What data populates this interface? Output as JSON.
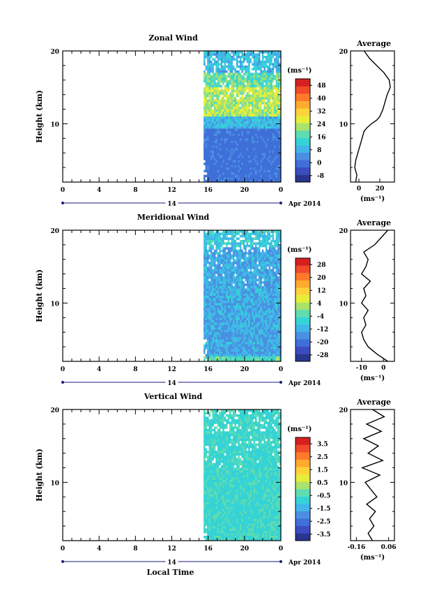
{
  "chart_data": [
    {
      "type": "heatmap",
      "title": "Zonal Wind",
      "ylabel": "Height (km)",
      "xlabel": "",
      "x_ticks": [
        "0",
        "4",
        "8",
        "12",
        "16",
        "20",
        "0"
      ],
      "xlim": [
        0,
        24
      ],
      "y_ticks": [
        "10",
        "20"
      ],
      "ylim": [
        2,
        20
      ],
      "date_day": "14",
      "date_label": "Apr 2014",
      "data_start_hour": 15.5,
      "colorbar": {
        "unit": "(ms⁻¹)",
        "ticks": [
          "-8",
          "0",
          "8",
          "16",
          "24",
          "32",
          "40",
          "48"
        ],
        "range": [
          -12,
          52
        ],
        "colors": [
          "#2a3590",
          "#3b4cc0",
          "#3f6fd8",
          "#4a90e2",
          "#41b6e8",
          "#35d3d6",
          "#5fdcb0",
          "#a9e36c",
          "#e6ee3a",
          "#ffd23a",
          "#ffab2e",
          "#ff7a2a",
          "#f04a2a",
          "#d62020"
        ]
      },
      "profile": {
        "title": "Average",
        "x_ticks": [
          "0",
          "20"
        ],
        "xlim": [
          -8,
          34
        ],
        "unit": "(ms⁻¹)",
        "height_km": [
          2,
          3,
          4,
          5,
          6,
          7,
          8,
          9,
          9.5,
          10,
          10.5,
          11,
          12,
          13,
          14,
          15,
          16,
          17,
          18,
          19,
          20
        ],
        "values": [
          -3,
          -2,
          -4,
          -3,
          -1,
          1,
          3,
          5,
          8,
          12,
          17,
          20,
          23,
          25,
          27,
          30,
          29,
          24,
          17,
          10,
          5
        ]
      }
    },
    {
      "type": "heatmap",
      "title": "Meridional Wind",
      "ylabel": "Height (km)",
      "xlabel": "",
      "x_ticks": [
        "0",
        "4",
        "8",
        "12",
        "16",
        "20",
        "0"
      ],
      "xlim": [
        0,
        24
      ],
      "y_ticks": [
        "10",
        "20"
      ],
      "ylim": [
        2,
        20
      ],
      "date_day": "14",
      "date_label": "Apr 2014",
      "data_start_hour": 15.5,
      "colorbar": {
        "unit": "(ms⁻¹)",
        "ticks": [
          "-28",
          "-20",
          "-12",
          "-4",
          "4",
          "12",
          "20",
          "28"
        ],
        "range": [
          -32,
          32
        ],
        "colors": [
          "#2a3590",
          "#3b4cc0",
          "#3f6fd8",
          "#4a90e2",
          "#41b6e8",
          "#35d3d6",
          "#5fdcb0",
          "#a9e36c",
          "#e6ee3a",
          "#ffd23a",
          "#ffab2e",
          "#ff7a2a",
          "#f04a2a",
          "#d62020"
        ]
      },
      "profile": {
        "title": "Average",
        "x_ticks": [
          "-10",
          "0"
        ],
        "xlim": [
          -15,
          5
        ],
        "unit": "(ms⁻¹)",
        "height_km": [
          2,
          3,
          4,
          5,
          6,
          7,
          8,
          9,
          10,
          11,
          12,
          13,
          14,
          15,
          16,
          17,
          18,
          19,
          20
        ],
        "values": [
          2,
          -3,
          -7,
          -9,
          -10,
          -8,
          -9,
          -7,
          -10,
          -8,
          -9,
          -6,
          -10,
          -8,
          -7,
          -9,
          -4,
          -1,
          2
        ]
      }
    },
    {
      "type": "heatmap",
      "title": "Vertical Wind",
      "ylabel": "Height (km)",
      "xlabel": "Local Time",
      "x_ticks": [
        "0",
        "4",
        "8",
        "12",
        "16",
        "20",
        "0"
      ],
      "xlim": [
        0,
        24
      ],
      "y_ticks": [
        "10",
        "20"
      ],
      "ylim": [
        2,
        20
      ],
      "date_day": "14",
      "date_label": "Apr 2014",
      "data_start_hour": 15.5,
      "colorbar": {
        "unit": "(ms⁻¹)",
        "ticks": [
          "-3.5",
          "-2.5",
          "-1.5",
          "-0.5",
          "0.5",
          "1.5",
          "2.5",
          "3.5"
        ],
        "range": [
          -4,
          4
        ],
        "colors": [
          "#2a3590",
          "#3b4cc0",
          "#3f6fd8",
          "#4a90e2",
          "#41b6e8",
          "#35d3d6",
          "#5fdcb0",
          "#a9e36c",
          "#e6ee3a",
          "#ffd23a",
          "#ffab2e",
          "#ff7a2a",
          "#f04a2a",
          "#d62020"
        ]
      },
      "profile": {
        "title": "Average",
        "x_ticks": [
          "-0.16",
          "0.06"
        ],
        "xlim": [
          -0.2,
          0.1
        ],
        "unit": "(ms⁻¹)",
        "height_km": [
          2,
          3,
          4,
          5,
          6,
          7,
          8,
          9,
          10,
          11,
          12,
          13,
          14,
          15,
          16,
          17,
          18,
          19,
          20
        ],
        "values": [
          -0.05,
          -0.08,
          -0.04,
          -0.07,
          -0.03,
          -0.09,
          -0.02,
          -0.06,
          -0.1,
          0.0,
          -0.12,
          0.02,
          -0.08,
          -0.01,
          -0.11,
          0.01,
          -0.09,
          0.03,
          -0.05
        ]
      }
    }
  ]
}
